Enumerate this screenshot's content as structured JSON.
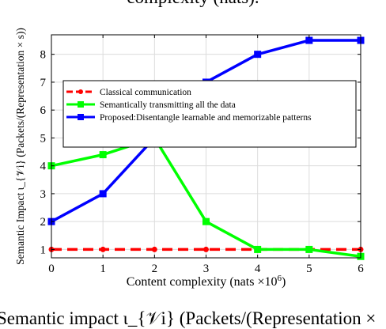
{
  "page": {
    "caption_top": "complexity (nats).",
    "caption_bottom": "Semantic impact ι_{𝒱i} (Packets/(Representation ×"
  },
  "chart_data": {
    "type": "line",
    "title": "",
    "xlabel": "Content complexity (nats ×10",
    "xlabel_sup": "6",
    "xlabel_end": ")",
    "ylabel": "Semantic Impact ι_{𝒱i} (Packets/(Representation × s))",
    "x": [
      0,
      1,
      2,
      3,
      4,
      5,
      6
    ],
    "xlim": [
      0,
      6
    ],
    "ylim": [
      0.7,
      8.7
    ],
    "xticks": [
      "0",
      "1",
      "2",
      "3",
      "4",
      "5",
      "6"
    ],
    "yticks": [
      "1",
      "2",
      "3",
      "4",
      "5",
      "6",
      "7",
      "8"
    ],
    "grid": true,
    "legend_position": "upper-left-center",
    "series": [
      {
        "name": "Classical communication",
        "color": "#ff0000",
        "style": "dashed",
        "marker": "circle",
        "values": [
          1,
          1,
          1,
          1,
          1,
          1,
          1
        ]
      },
      {
        "name": "Semantically transmitting all the data",
        "color": "#00ff00",
        "style": "solid",
        "marker": "square",
        "values": [
          4,
          4.4,
          5,
          2,
          1,
          1,
          0.75
        ]
      },
      {
        "name": "Proposed:Disentangle learnable and memorizable patterns",
        "color": "#0000ff",
        "style": "solid",
        "marker": "square",
        "values": [
          2,
          3,
          5,
          7,
          8,
          8.5,
          8.5
        ]
      }
    ]
  }
}
